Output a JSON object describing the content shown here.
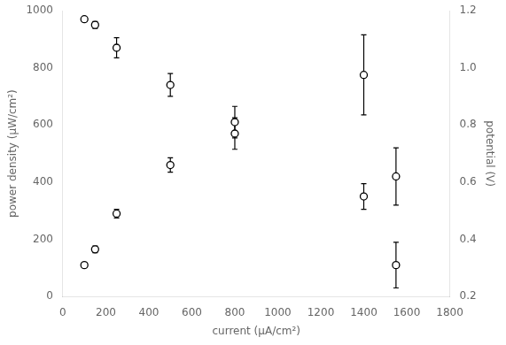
{
  "chart_data": {
    "type": "scatter",
    "x": [
      100,
      150,
      250,
      500,
      800,
      1400,
      1550
    ],
    "series": [
      {
        "color": "black",
        "marker": "o",
        "values": [
          110,
          165,
          290,
          460,
          610,
          350,
          110
        ],
        "errors": [
          8,
          12,
          15,
          25,
          55,
          45,
          80
        ]
      },
      {
        "color": "black",
        "marker": "o",
        "axis": "y2",
        "values": [
          1.17,
          1.15,
          1.07,
          0.94,
          0.77,
          0.975,
          0.62
        ],
        "errors": [
          0.008,
          0.012,
          0.035,
          0.04,
          0.055,
          0.14,
          0.1
        ]
      }
    ],
    "xlabel": "current (μA/cm²)",
    "ylabel": "power density (μW/cm²)",
    "y2label": "potential (V)",
    "xlim": [
      0,
      1800
    ],
    "ylim": [
      0,
      1000
    ],
    "y2lim": [
      0.2,
      1.2
    ],
    "xticks": [
      0,
      200,
      400,
      600,
      800,
      1000,
      1200,
      1400,
      1600,
      1800
    ],
    "yticks": [
      0,
      200,
      400,
      600,
      800,
      1000
    ],
    "y2ticks": [
      0.2,
      0.4,
      0.6,
      0.8,
      {
        "value": 1.0,
        "label": "1.0"
      },
      1.2
    ],
    "grid": false
  }
}
